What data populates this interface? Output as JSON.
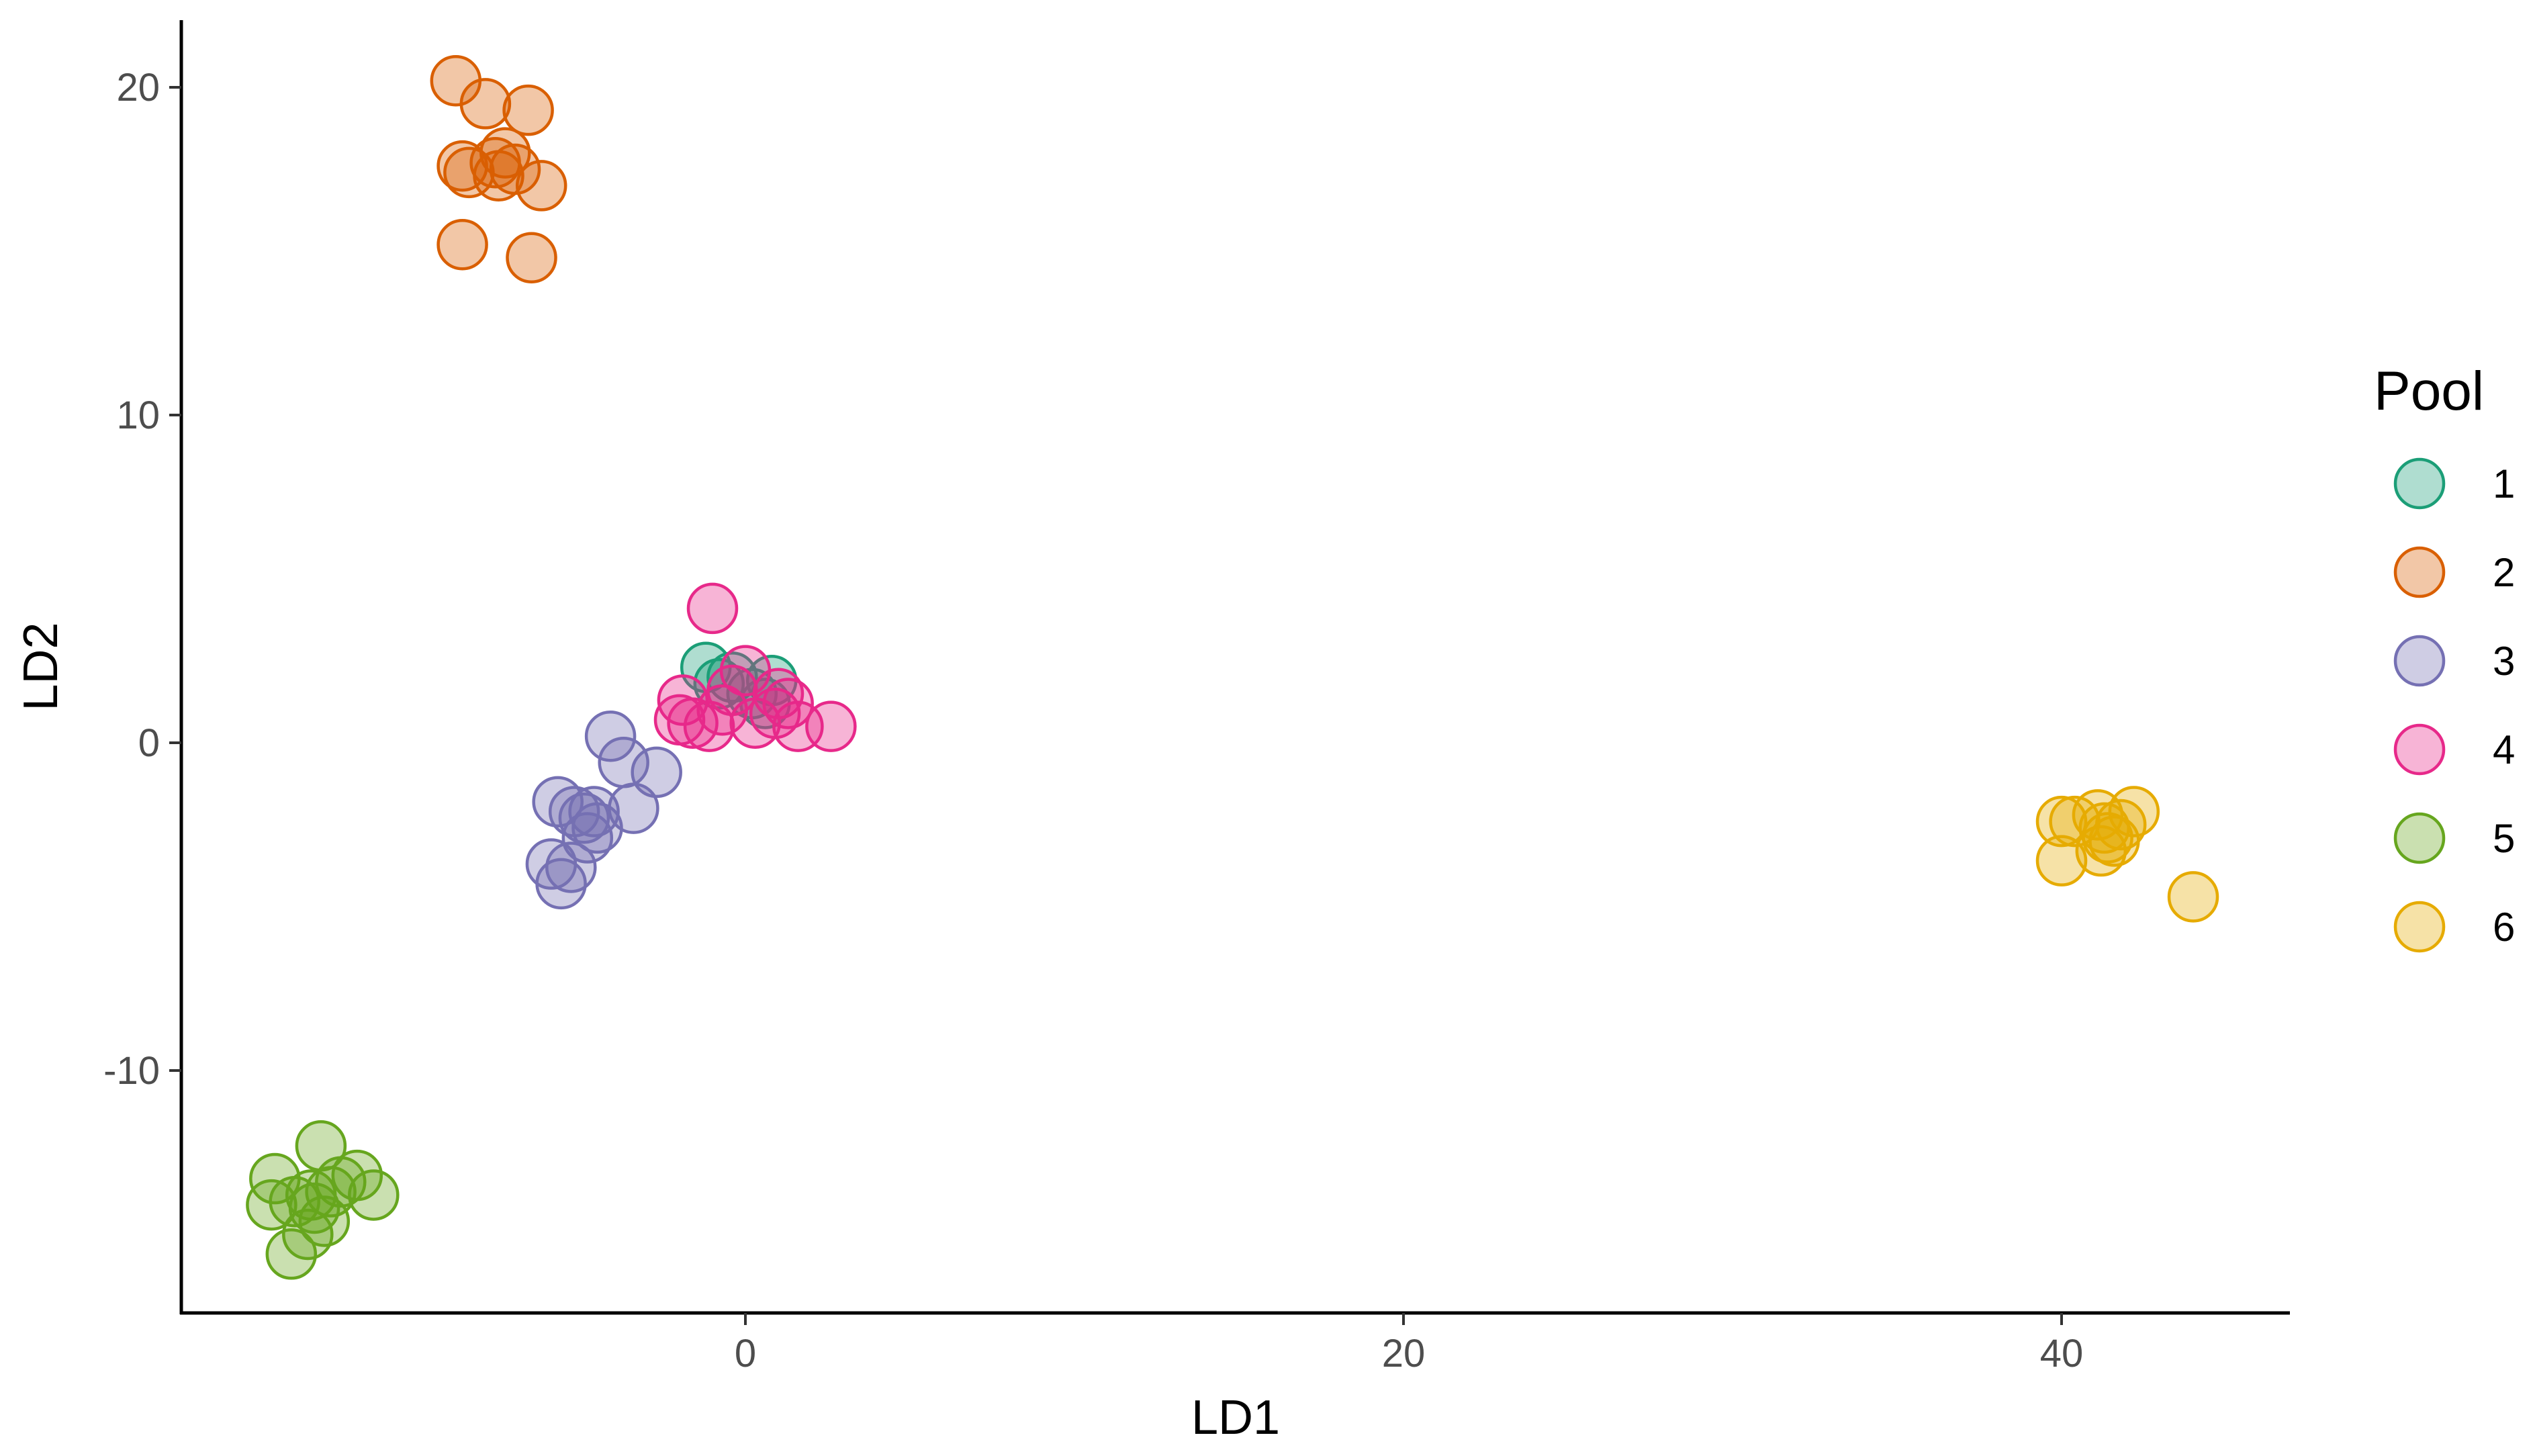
{
  "chart_data": {
    "type": "scatter",
    "title": "",
    "xlabel": "LD1",
    "ylabel": "LD2",
    "xlim": [
      -17,
      47
    ],
    "ylim": [
      -17.5,
      22
    ],
    "x_ticks": [
      0,
      20,
      40
    ],
    "y_ticks": [
      -10,
      0,
      10,
      20
    ],
    "grid": false,
    "legend": {
      "title": "Pool",
      "position": "right"
    },
    "series": [
      {
        "name": "1",
        "color": "#1B9E77",
        "points": [
          [
            -1.2,
            2.3
          ],
          [
            -0.8,
            1.8
          ],
          [
            -0.4,
            2.0
          ],
          [
            0.2,
            1.5
          ],
          [
            0.8,
            1.9
          ],
          [
            0.6,
            1.2
          ]
        ]
      },
      {
        "name": "2",
        "color": "#D95F02",
        "points": [
          [
            -8.8,
            20.2
          ],
          [
            -7.9,
            19.5
          ],
          [
            -6.6,
            19.3
          ],
          [
            -8.6,
            17.6
          ],
          [
            -8.4,
            17.4
          ],
          [
            -7.6,
            17.7
          ],
          [
            -7.3,
            18.0
          ],
          [
            -7.0,
            17.5
          ],
          [
            -7.5,
            17.3
          ],
          [
            -6.2,
            17.0
          ],
          [
            -8.6,
            15.2
          ],
          [
            -6.5,
            14.8
          ]
        ]
      },
      {
        "name": "3",
        "color": "#7570B3",
        "points": [
          [
            -4.1,
            0.2
          ],
          [
            -3.7,
            -0.6
          ],
          [
            -2.7,
            -0.9
          ],
          [
            -3.4,
            -2.0
          ],
          [
            -5.7,
            -1.8
          ],
          [
            -5.2,
            -2.1
          ],
          [
            -4.9,
            -2.3
          ],
          [
            -4.6,
            -2.1
          ],
          [
            -4.5,
            -2.6
          ],
          [
            -4.8,
            -2.9
          ],
          [
            -5.9,
            -3.7
          ],
          [
            -5.6,
            -4.3
          ],
          [
            -5.3,
            -3.8
          ]
        ]
      },
      {
        "name": "4",
        "color": "#E7298A",
        "points": [
          [
            -1.0,
            4.1
          ],
          [
            -1.9,
            1.3
          ],
          [
            -2.0,
            0.7
          ],
          [
            -1.6,
            0.6
          ],
          [
            -1.1,
            0.5
          ],
          [
            -0.7,
            1.0
          ],
          [
            0.0,
            2.2
          ],
          [
            0.3,
            0.6
          ],
          [
            0.9,
            0.9
          ],
          [
            1.3,
            1.2
          ],
          [
            1.6,
            0.5
          ],
          [
            2.6,
            0.5
          ],
          [
            -0.4,
            1.6
          ],
          [
            1.0,
            1.5
          ]
        ]
      },
      {
        "name": "5",
        "color": "#66A61E",
        "points": [
          [
            -12.9,
            -12.3
          ],
          [
            -14.3,
            -13.3
          ],
          [
            -14.4,
            -14.1
          ],
          [
            -13.7,
            -14.0
          ],
          [
            -13.2,
            -13.8
          ],
          [
            -12.6,
            -13.7
          ],
          [
            -12.3,
            -13.4
          ],
          [
            -11.8,
            -13.2
          ],
          [
            -11.3,
            -13.8
          ],
          [
            -13.8,
            -15.6
          ],
          [
            -13.3,
            -15.0
          ],
          [
            -12.8,
            -14.6
          ],
          [
            -13.1,
            -14.2
          ]
        ]
      },
      {
        "name": "6",
        "color": "#E6AB02",
        "points": [
          [
            40.0,
            -3.6
          ],
          [
            40.0,
            -2.4
          ],
          [
            40.4,
            -2.4
          ],
          [
            41.1,
            -2.2
          ],
          [
            41.3,
            -2.6
          ],
          [
            41.2,
            -3.3
          ],
          [
            41.6,
            -3.0
          ],
          [
            41.8,
            -2.5
          ],
          [
            42.2,
            -2.1
          ],
          [
            44.0,
            -4.7
          ],
          [
            41.4,
            -2.9
          ]
        ]
      }
    ]
  }
}
